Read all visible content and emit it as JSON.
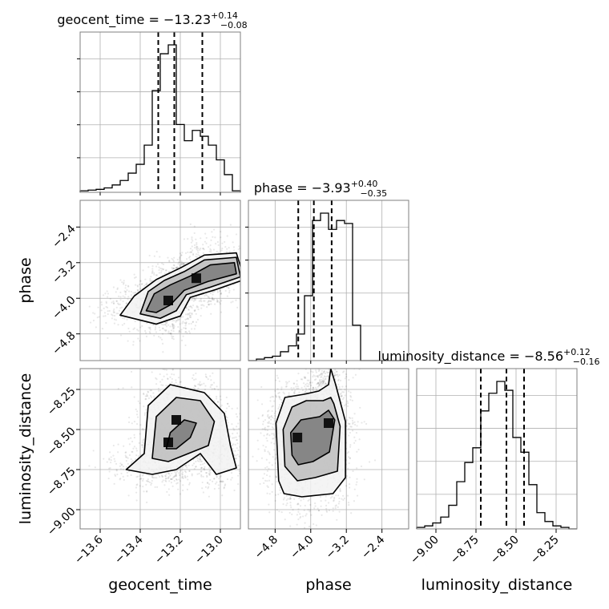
{
  "chart_data": {
    "type": "corner",
    "parameters": [
      {
        "name": "geocent_time",
        "title_value": "−13.23",
        "title_plus": "+0.14",
        "title_minus": "−0.08",
        "range": [
          -13.7,
          -12.9
        ],
        "quantiles": [
          -13.31,
          -13.23,
          -13.09
        ],
        "ticks": [
          -13.6,
          -13.4,
          -13.2,
          -13.0
        ],
        "tick_labels": [
          "−13.6",
          "−13.4",
          "−13.2",
          "−13.0"
        ],
        "hist": [
          0.01,
          0.015,
          0.02,
          0.03,
          0.05,
          0.08,
          0.13,
          0.19,
          0.32,
          0.69,
          0.94,
          1.0,
          0.46,
          0.35,
          0.42,
          0.38,
          0.32,
          0.22,
          0.12,
          0.01
        ]
      },
      {
        "name": "phase",
        "title_value": "−3.93",
        "title_plus": "+0.40",
        "title_minus": "−0.35",
        "range": [
          -5.4,
          -1.8
        ],
        "quantiles": [
          -4.28,
          -3.93,
          -3.53
        ],
        "ticks": [
          -4.8,
          -4.0,
          -3.2,
          -2.4
        ],
        "tick_labels": [
          "−4.8",
          "−4.0",
          "−3.2",
          "−2.4"
        ],
        "hist": [
          0.0,
          0.01,
          0.02,
          0.03,
          0.06,
          0.1,
          0.18,
          0.44,
          0.95,
          1.0,
          0.89,
          0.95,
          0.93,
          0.24,
          0.0,
          0.0,
          0.0,
          0.0,
          0.0,
          0.0
        ]
      },
      {
        "name": "luminosity_distance",
        "title_value": "−8.56",
        "title_plus": "+0.12",
        "title_minus": "−0.16",
        "range": [
          -9.12,
          -8.12
        ],
        "quantiles": [
          -8.72,
          -8.56,
          -8.45
        ],
        "ticks": [
          -9.0,
          -8.75,
          -8.5,
          -8.25
        ],
        "tick_labels": [
          "−9.00",
          "−8.75",
          "−8.50",
          "−8.25"
        ],
        "hist": [
          0.01,
          0.02,
          0.04,
          0.08,
          0.16,
          0.32,
          0.45,
          0.55,
          0.8,
          0.92,
          1.0,
          0.94,
          0.62,
          0.52,
          0.3,
          0.11,
          0.05,
          0.02,
          0.01,
          0.0
        ]
      }
    ],
    "pairs": [
      {
        "x": 0,
        "y": 1,
        "peaks": [
          [
            -13.26,
            -4.05
          ],
          [
            -13.12,
            -3.55
          ]
        ],
        "contours": [
          [
            [
              -13.37,
              -4.28
            ],
            [
              -13.33,
              -3.9
            ],
            [
              -13.25,
              -3.7
            ],
            [
              -13.15,
              -3.5
            ],
            [
              -13.05,
              -3.25
            ],
            [
              -12.93,
              -3.2
            ],
            [
              -12.92,
              -3.45
            ],
            [
              -13.06,
              -3.62
            ],
            [
              -13.18,
              -3.82
            ],
            [
              -13.25,
              -4.15
            ],
            [
              -13.32,
              -4.32
            ]
          ],
          [
            [
              -13.4,
              -4.35
            ],
            [
              -13.36,
              -3.85
            ],
            [
              -13.28,
              -3.6
            ],
            [
              -13.18,
              -3.4
            ],
            [
              -13.08,
              -3.14
            ],
            [
              -12.92,
              -3.08
            ],
            [
              -12.9,
              -3.52
            ],
            [
              -13.05,
              -3.75
            ],
            [
              -13.17,
              -3.92
            ],
            [
              -13.22,
              -4.28
            ],
            [
              -13.3,
              -4.45
            ]
          ],
          [
            [
              -13.5,
              -4.38
            ],
            [
              -13.43,
              -3.95
            ],
            [
              -13.32,
              -3.58
            ],
            [
              -13.2,
              -3.32
            ],
            [
              -13.08,
              -3.03
            ],
            [
              -12.92,
              -2.98
            ],
            [
              -12.88,
              -3.58
            ],
            [
              -13.02,
              -3.8
            ],
            [
              -13.15,
              -3.98
            ],
            [
              -13.2,
              -4.4
            ],
            [
              -13.32,
              -4.58
            ]
          ]
        ]
      },
      {
        "x": 0,
        "y": 2,
        "peaks": [
          [
            -13.26,
            -8.58
          ],
          [
            -13.22,
            -8.44
          ]
        ],
        "contours": [
          [
            [
              -13.27,
              -8.62
            ],
            [
              -13.25,
              -8.52
            ],
            [
              -13.18,
              -8.44
            ],
            [
              -13.12,
              -8.46
            ],
            [
              -13.15,
              -8.55
            ],
            [
              -13.22,
              -8.62
            ]
          ],
          [
            [
              -13.34,
              -8.68
            ],
            [
              -13.32,
              -8.42
            ],
            [
              -13.22,
              -8.3
            ],
            [
              -13.1,
              -8.32
            ],
            [
              -13.03,
              -8.45
            ],
            [
              -13.06,
              -8.6
            ],
            [
              -13.18,
              -8.66
            ],
            [
              -13.26,
              -8.7
            ]
          ],
          [
            [
              -13.47,
              -8.75
            ],
            [
              -13.38,
              -8.65
            ],
            [
              -13.36,
              -8.35
            ],
            [
              -13.25,
              -8.22
            ],
            [
              -13.08,
              -8.27
            ],
            [
              -12.98,
              -8.4
            ],
            [
              -12.95,
              -8.6
            ],
            [
              -12.92,
              -8.74
            ],
            [
              -13.02,
              -8.78
            ],
            [
              -13.1,
              -8.65
            ],
            [
              -13.22,
              -8.75
            ],
            [
              -13.34,
              -8.78
            ]
          ]
        ]
      },
      {
        "x": 1,
        "y": 2,
        "peaks": [
          [
            -4.3,
            -8.55
          ],
          [
            -3.6,
            -8.46
          ]
        ],
        "contours": [
          [
            [
              -4.42,
              -8.66
            ],
            [
              -4.45,
              -8.52
            ],
            [
              -4.22,
              -8.44
            ],
            [
              -3.8,
              -8.42
            ],
            [
              -3.6,
              -8.38
            ],
            [
              -3.46,
              -8.44
            ],
            [
              -3.58,
              -8.64
            ],
            [
              -3.95,
              -8.7
            ],
            [
              -4.28,
              -8.72
            ]
          ],
          [
            [
              -4.58,
              -8.73
            ],
            [
              -4.62,
              -8.5
            ],
            [
              -4.42,
              -8.36
            ],
            [
              -4.1,
              -8.32
            ],
            [
              -3.72,
              -8.32
            ],
            [
              -3.55,
              -8.3
            ],
            [
              -3.48,
              -8.34
            ],
            [
              -3.34,
              -8.48
            ],
            [
              -3.4,
              -8.76
            ],
            [
              -3.9,
              -8.8
            ],
            [
              -4.3,
              -8.82
            ]
          ],
          [
            [
              -4.72,
              -8.82
            ],
            [
              -4.78,
              -8.46
            ],
            [
              -4.58,
              -8.3
            ],
            [
              -4.15,
              -8.28
            ],
            [
              -3.82,
              -8.26
            ],
            [
              -3.6,
              -8.22
            ],
            [
              -3.55,
              -8.12
            ],
            [
              -3.44,
              -8.22
            ],
            [
              -3.22,
              -8.45
            ],
            [
              -3.22,
              -8.8
            ],
            [
              -3.5,
              -8.9
            ],
            [
              -4.2,
              -8.92
            ],
            [
              -4.6,
              -8.9
            ]
          ]
        ]
      }
    ]
  }
}
